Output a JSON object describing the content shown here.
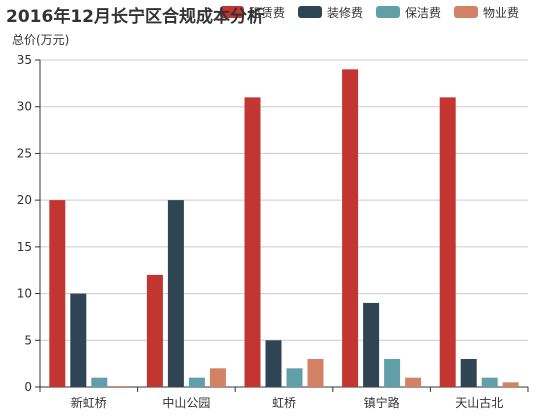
{
  "chart_data": {
    "type": "bar",
    "title": "2016年12月长宁区合规成本分析",
    "ylabel": "总价(万元)",
    "xlabel": "",
    "ylim": [
      0,
      35
    ],
    "yticks": [
      0,
      5,
      10,
      15,
      20,
      25,
      30,
      35
    ],
    "grid": true,
    "legend_position": "top-right",
    "categories": [
      "新虹桥",
      "中山公园",
      "虹桥",
      "镇宁路",
      "天山古北"
    ],
    "series": [
      {
        "name": "租赁费",
        "color": "#c23531",
        "values": [
          20,
          12,
          31,
          34,
          31
        ]
      },
      {
        "name": "装修费",
        "color": "#2f4554",
        "values": [
          10,
          20,
          5,
          9,
          3
        ]
      },
      {
        "name": "保洁费",
        "color": "#61a0a8",
        "values": [
          1,
          1,
          2,
          3,
          1
        ]
      },
      {
        "name": "物业费",
        "color": "#d48265",
        "values": [
          0.1,
          2,
          3,
          1,
          0.5
        ]
      }
    ]
  }
}
